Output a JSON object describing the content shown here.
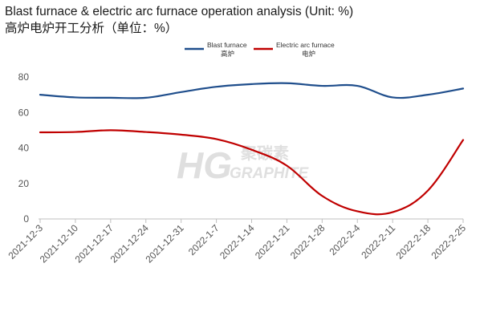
{
  "title_en": "Blast furnace & electric arc furnace operation analysis (Unit: %)",
  "title_zh": "高炉电炉开工分析（单位：%）",
  "watermark": {
    "mark": "HG",
    "zh": "聚碳素",
    "en": "GRAPHITE"
  },
  "colors": {
    "blast": "#1f4e8c",
    "electric": "#c00000",
    "axis": "#bfbfbf",
    "watermark": "#dcdcdc"
  },
  "chart_data": {
    "type": "line",
    "title": "Blast furnace & electric arc furnace operation analysis (Unit: %)",
    "subtitle": "高炉电炉开工分析（单位：%）",
    "xlabel": "",
    "ylabel": "",
    "ylim": [
      0,
      80
    ],
    "yticks": [
      0,
      20,
      40,
      60,
      80
    ],
    "grid": false,
    "legend_position": "top-center",
    "categories": [
      "2021-12-3",
      "2021-12-10",
      "2021-12-17",
      "2021-12-24",
      "2021-12-31",
      "2022-1-7",
      "2022-1-14",
      "2022-1-21",
      "2022-1-28",
      "2022-2-4",
      "2022-2-11",
      "2022-2-18",
      "2022-2-25"
    ],
    "series": [
      {
        "name": "Blast furnace",
        "name_zh": "高炉",
        "values": [
          70,
          68.5,
          68.3,
          68.3,
          71.5,
          74.5,
          76,
          76.5,
          75,
          75,
          68.5,
          70,
          73.5
        ]
      },
      {
        "name": "Electric arc furnace",
        "name_zh": "电炉",
        "values": [
          48.8,
          49,
          50,
          49,
          47.5,
          45,
          39,
          30,
          13,
          4.3,
          3.8,
          16,
          44.5
        ]
      }
    ]
  }
}
